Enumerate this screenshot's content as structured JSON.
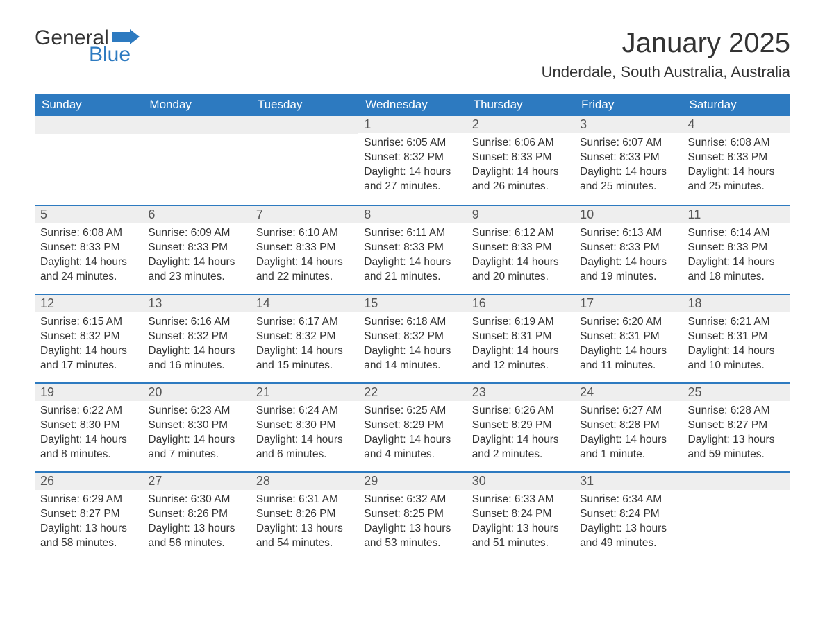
{
  "brand": {
    "word1": "General",
    "word2": "Blue",
    "flag_color": "#2d7ac0"
  },
  "title": "January 2025",
  "location": "Underdale, South Australia, Australia",
  "colors": {
    "header_bg": "#2d7ac0",
    "header_text": "#ffffff",
    "daynum_bg": "#eeeeee",
    "row_border": "#2d7ac0",
    "body_text": "#333333",
    "page_bg": "#ffffff"
  },
  "typography": {
    "title_fontsize": 40,
    "location_fontsize": 22,
    "weekday_fontsize": 17,
    "daynum_fontsize": 18,
    "body_fontsize": 15.5
  },
  "weekdays": [
    "Sunday",
    "Monday",
    "Tuesday",
    "Wednesday",
    "Thursday",
    "Friday",
    "Saturday"
  ],
  "weeks": [
    [
      {
        "blank": true
      },
      {
        "blank": true
      },
      {
        "blank": true
      },
      {
        "n": "1",
        "sunrise": "Sunrise: 6:05 AM",
        "sunset": "Sunset: 8:32 PM",
        "daylight": "Daylight: 14 hours and 27 minutes."
      },
      {
        "n": "2",
        "sunrise": "Sunrise: 6:06 AM",
        "sunset": "Sunset: 8:33 PM",
        "daylight": "Daylight: 14 hours and 26 minutes."
      },
      {
        "n": "3",
        "sunrise": "Sunrise: 6:07 AM",
        "sunset": "Sunset: 8:33 PM",
        "daylight": "Daylight: 14 hours and 25 minutes."
      },
      {
        "n": "4",
        "sunrise": "Sunrise: 6:08 AM",
        "sunset": "Sunset: 8:33 PM",
        "daylight": "Daylight: 14 hours and 25 minutes."
      }
    ],
    [
      {
        "n": "5",
        "sunrise": "Sunrise: 6:08 AM",
        "sunset": "Sunset: 8:33 PM",
        "daylight": "Daylight: 14 hours and 24 minutes."
      },
      {
        "n": "6",
        "sunrise": "Sunrise: 6:09 AM",
        "sunset": "Sunset: 8:33 PM",
        "daylight": "Daylight: 14 hours and 23 minutes."
      },
      {
        "n": "7",
        "sunrise": "Sunrise: 6:10 AM",
        "sunset": "Sunset: 8:33 PM",
        "daylight": "Daylight: 14 hours and 22 minutes."
      },
      {
        "n": "8",
        "sunrise": "Sunrise: 6:11 AM",
        "sunset": "Sunset: 8:33 PM",
        "daylight": "Daylight: 14 hours and 21 minutes."
      },
      {
        "n": "9",
        "sunrise": "Sunrise: 6:12 AM",
        "sunset": "Sunset: 8:33 PM",
        "daylight": "Daylight: 14 hours and 20 minutes."
      },
      {
        "n": "10",
        "sunrise": "Sunrise: 6:13 AM",
        "sunset": "Sunset: 8:33 PM",
        "daylight": "Daylight: 14 hours and 19 minutes."
      },
      {
        "n": "11",
        "sunrise": "Sunrise: 6:14 AM",
        "sunset": "Sunset: 8:33 PM",
        "daylight": "Daylight: 14 hours and 18 minutes."
      }
    ],
    [
      {
        "n": "12",
        "sunrise": "Sunrise: 6:15 AM",
        "sunset": "Sunset: 8:32 PM",
        "daylight": "Daylight: 14 hours and 17 minutes."
      },
      {
        "n": "13",
        "sunrise": "Sunrise: 6:16 AM",
        "sunset": "Sunset: 8:32 PM",
        "daylight": "Daylight: 14 hours and 16 minutes."
      },
      {
        "n": "14",
        "sunrise": "Sunrise: 6:17 AM",
        "sunset": "Sunset: 8:32 PM",
        "daylight": "Daylight: 14 hours and 15 minutes."
      },
      {
        "n": "15",
        "sunrise": "Sunrise: 6:18 AM",
        "sunset": "Sunset: 8:32 PM",
        "daylight": "Daylight: 14 hours and 14 minutes."
      },
      {
        "n": "16",
        "sunrise": "Sunrise: 6:19 AM",
        "sunset": "Sunset: 8:31 PM",
        "daylight": "Daylight: 14 hours and 12 minutes."
      },
      {
        "n": "17",
        "sunrise": "Sunrise: 6:20 AM",
        "sunset": "Sunset: 8:31 PM",
        "daylight": "Daylight: 14 hours and 11 minutes."
      },
      {
        "n": "18",
        "sunrise": "Sunrise: 6:21 AM",
        "sunset": "Sunset: 8:31 PM",
        "daylight": "Daylight: 14 hours and 10 minutes."
      }
    ],
    [
      {
        "n": "19",
        "sunrise": "Sunrise: 6:22 AM",
        "sunset": "Sunset: 8:30 PM",
        "daylight": "Daylight: 14 hours and 8 minutes."
      },
      {
        "n": "20",
        "sunrise": "Sunrise: 6:23 AM",
        "sunset": "Sunset: 8:30 PM",
        "daylight": "Daylight: 14 hours and 7 minutes."
      },
      {
        "n": "21",
        "sunrise": "Sunrise: 6:24 AM",
        "sunset": "Sunset: 8:30 PM",
        "daylight": "Daylight: 14 hours and 6 minutes."
      },
      {
        "n": "22",
        "sunrise": "Sunrise: 6:25 AM",
        "sunset": "Sunset: 8:29 PM",
        "daylight": "Daylight: 14 hours and 4 minutes."
      },
      {
        "n": "23",
        "sunrise": "Sunrise: 6:26 AM",
        "sunset": "Sunset: 8:29 PM",
        "daylight": "Daylight: 14 hours and 2 minutes."
      },
      {
        "n": "24",
        "sunrise": "Sunrise: 6:27 AM",
        "sunset": "Sunset: 8:28 PM",
        "daylight": "Daylight: 14 hours and 1 minute."
      },
      {
        "n": "25",
        "sunrise": "Sunrise: 6:28 AM",
        "sunset": "Sunset: 8:27 PM",
        "daylight": "Daylight: 13 hours and 59 minutes."
      }
    ],
    [
      {
        "n": "26",
        "sunrise": "Sunrise: 6:29 AM",
        "sunset": "Sunset: 8:27 PM",
        "daylight": "Daylight: 13 hours and 58 minutes."
      },
      {
        "n": "27",
        "sunrise": "Sunrise: 6:30 AM",
        "sunset": "Sunset: 8:26 PM",
        "daylight": "Daylight: 13 hours and 56 minutes."
      },
      {
        "n": "28",
        "sunrise": "Sunrise: 6:31 AM",
        "sunset": "Sunset: 8:26 PM",
        "daylight": "Daylight: 13 hours and 54 minutes."
      },
      {
        "n": "29",
        "sunrise": "Sunrise: 6:32 AM",
        "sunset": "Sunset: 8:25 PM",
        "daylight": "Daylight: 13 hours and 53 minutes."
      },
      {
        "n": "30",
        "sunrise": "Sunrise: 6:33 AM",
        "sunset": "Sunset: 8:24 PM",
        "daylight": "Daylight: 13 hours and 51 minutes."
      },
      {
        "n": "31",
        "sunrise": "Sunrise: 6:34 AM",
        "sunset": "Sunset: 8:24 PM",
        "daylight": "Daylight: 13 hours and 49 minutes."
      },
      {
        "blank": true
      }
    ]
  ]
}
